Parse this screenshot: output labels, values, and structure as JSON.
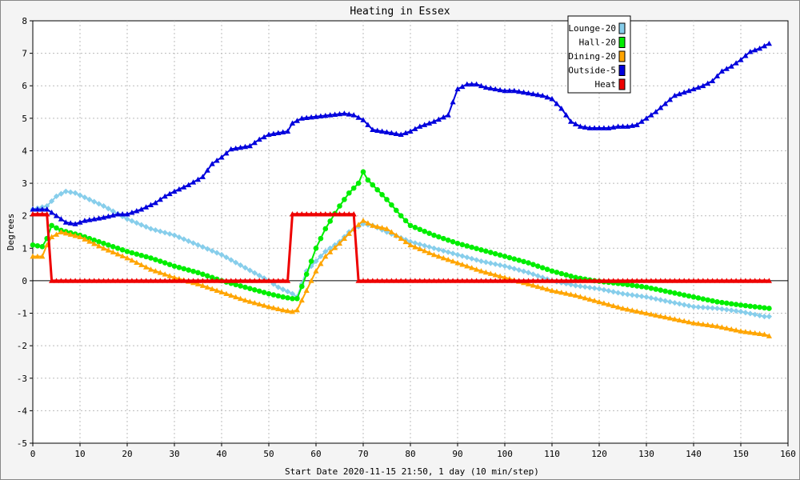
{
  "chart_data": {
    "type": "line",
    "title": "Heating in Essex",
    "xlabel": "Start Date 2020-11-15 21:50, 1 day (10 min/step)",
    "ylabel": "Degrees",
    "xlim": [
      0,
      160
    ],
    "ylim": [
      -5,
      8
    ],
    "xticks": [
      0,
      10,
      20,
      30,
      40,
      50,
      60,
      70,
      80,
      90,
      100,
      110,
      120,
      130,
      140,
      150,
      160
    ],
    "yticks": [
      -5,
      -4,
      -3,
      -2,
      -1,
      0,
      1,
      2,
      3,
      4,
      5,
      6,
      7,
      8
    ],
    "grid": true,
    "legend_position": "top-right",
    "series": [
      {
        "name": "Lounge-20",
        "color": "#87ceeb",
        "marker": "diamond",
        "points": [
          [
            0,
            2.2
          ],
          [
            3,
            2.3
          ],
          [
            5,
            2.6
          ],
          [
            7,
            2.75
          ],
          [
            9,
            2.7
          ],
          [
            12,
            2.5
          ],
          [
            15,
            2.3
          ],
          [
            20,
            1.9
          ],
          [
            25,
            1.6
          ],
          [
            30,
            1.4
          ],
          [
            35,
            1.1
          ],
          [
            40,
            0.8
          ],
          [
            45,
            0.4
          ],
          [
            50,
            0.0
          ],
          [
            52,
            -0.2
          ],
          [
            55,
            -0.4
          ],
          [
            56,
            -0.5
          ],
          [
            58,
            0.3
          ],
          [
            62,
            0.9
          ],
          [
            65,
            1.2
          ],
          [
            67,
            1.5
          ],
          [
            70,
            1.75
          ],
          [
            72,
            1.7
          ],
          [
            75,
            1.5
          ],
          [
            80,
            1.2
          ],
          [
            85,
            1.0
          ],
          [
            90,
            0.8
          ],
          [
            95,
            0.6
          ],
          [
            100,
            0.45
          ],
          [
            105,
            0.25
          ],
          [
            110,
            0.0
          ],
          [
            115,
            -0.15
          ],
          [
            120,
            -0.25
          ],
          [
            125,
            -0.4
          ],
          [
            130,
            -0.5
          ],
          [
            135,
            -0.65
          ],
          [
            140,
            -0.8
          ],
          [
            145,
            -0.85
          ],
          [
            150,
            -0.95
          ],
          [
            155,
            -1.1
          ],
          [
            156,
            -1.1
          ]
        ]
      },
      {
        "name": "Hall-20",
        "color": "#00ee00",
        "marker": "circle",
        "points": [
          [
            0,
            1.1
          ],
          [
            2,
            1.05
          ],
          [
            3,
            1.3
          ],
          [
            4,
            1.7
          ],
          [
            6,
            1.55
          ],
          [
            10,
            1.4
          ],
          [
            15,
            1.15
          ],
          [
            20,
            0.9
          ],
          [
            25,
            0.7
          ],
          [
            30,
            0.45
          ],
          [
            35,
            0.25
          ],
          [
            40,
            0.0
          ],
          [
            45,
            -0.2
          ],
          [
            50,
            -0.4
          ],
          [
            53,
            -0.5
          ],
          [
            55,
            -0.55
          ],
          [
            56,
            -0.55
          ],
          [
            58,
            0.2
          ],
          [
            60,
            1.0
          ],
          [
            62,
            1.6
          ],
          [
            65,
            2.3
          ],
          [
            67,
            2.7
          ],
          [
            69,
            3.0
          ],
          [
            70,
            3.35
          ],
          [
            71,
            3.1
          ],
          [
            73,
            2.8
          ],
          [
            75,
            2.5
          ],
          [
            78,
            2.0
          ],
          [
            80,
            1.7
          ],
          [
            85,
            1.4
          ],
          [
            90,
            1.15
          ],
          [
            95,
            0.95
          ],
          [
            100,
            0.75
          ],
          [
            105,
            0.55
          ],
          [
            110,
            0.3
          ],
          [
            115,
            0.1
          ],
          [
            119,
            0.0
          ],
          [
            125,
            -0.1
          ],
          [
            130,
            -0.2
          ],
          [
            135,
            -0.35
          ],
          [
            140,
            -0.5
          ],
          [
            145,
            -0.65
          ],
          [
            150,
            -0.75
          ],
          [
            156,
            -0.85
          ]
        ]
      },
      {
        "name": "Dining-20",
        "color": "#ffa500",
        "marker": "triangle",
        "points": [
          [
            0,
            0.75
          ],
          [
            2,
            0.75
          ],
          [
            3,
            1.1
          ],
          [
            4,
            1.35
          ],
          [
            6,
            1.5
          ],
          [
            10,
            1.35
          ],
          [
            15,
            1.0
          ],
          [
            20,
            0.7
          ],
          [
            25,
            0.35
          ],
          [
            30,
            0.1
          ],
          [
            35,
            -0.1
          ],
          [
            40,
            -0.35
          ],
          [
            45,
            -0.6
          ],
          [
            50,
            -0.8
          ],
          [
            53,
            -0.9
          ],
          [
            55,
            -0.95
          ],
          [
            56,
            -0.9
          ],
          [
            58,
            -0.3
          ],
          [
            60,
            0.3
          ],
          [
            62,
            0.75
          ],
          [
            65,
            1.15
          ],
          [
            68,
            1.6
          ],
          [
            70,
            1.85
          ],
          [
            72,
            1.7
          ],
          [
            75,
            1.6
          ],
          [
            78,
            1.3
          ],
          [
            80,
            1.1
          ],
          [
            85,
            0.8
          ],
          [
            90,
            0.55
          ],
          [
            95,
            0.3
          ],
          [
            100,
            0.1
          ],
          [
            105,
            -0.1
          ],
          [
            110,
            -0.3
          ],
          [
            115,
            -0.45
          ],
          [
            120,
            -0.65
          ],
          [
            125,
            -0.85
          ],
          [
            130,
            -1.0
          ],
          [
            135,
            -1.15
          ],
          [
            140,
            -1.3
          ],
          [
            145,
            -1.4
          ],
          [
            150,
            -1.55
          ],
          [
            155,
            -1.65
          ],
          [
            156,
            -1.7
          ]
        ]
      },
      {
        "name": "Outside-5",
        "color": "#0000dd",
        "marker": "triangle",
        "points": [
          [
            0,
            2.2
          ],
          [
            3,
            2.2
          ],
          [
            5,
            2.0
          ],
          [
            7,
            1.8
          ],
          [
            9,
            1.75
          ],
          [
            11,
            1.85
          ],
          [
            13,
            1.9
          ],
          [
            15,
            1.95
          ],
          [
            18,
            2.05
          ],
          [
            20,
            2.05
          ],
          [
            23,
            2.2
          ],
          [
            26,
            2.4
          ],
          [
            28,
            2.6
          ],
          [
            30,
            2.75
          ],
          [
            33,
            2.95
          ],
          [
            36,
            3.2
          ],
          [
            38,
            3.6
          ],
          [
            40,
            3.8
          ],
          [
            42,
            4.05
          ],
          [
            44,
            4.1
          ],
          [
            46,
            4.15
          ],
          [
            48,
            4.35
          ],
          [
            50,
            4.5
          ],
          [
            52,
            4.55
          ],
          [
            54,
            4.6
          ],
          [
            55,
            4.85
          ],
          [
            57,
            5.0
          ],
          [
            60,
            5.05
          ],
          [
            63,
            5.1
          ],
          [
            66,
            5.15
          ],
          [
            68,
            5.1
          ],
          [
            70,
            4.95
          ],
          [
            72,
            4.65
          ],
          [
            74,
            4.6
          ],
          [
            76,
            4.55
          ],
          [
            78,
            4.5
          ],
          [
            80,
            4.6
          ],
          [
            82,
            4.75
          ],
          [
            85,
            4.9
          ],
          [
            88,
            5.1
          ],
          [
            90,
            5.9
          ],
          [
            92,
            6.05
          ],
          [
            94,
            6.05
          ],
          [
            96,
            5.95
          ],
          [
            98,
            5.9
          ],
          [
            100,
            5.85
          ],
          [
            102,
            5.85
          ],
          [
            104,
            5.8
          ],
          [
            106,
            5.75
          ],
          [
            108,
            5.7
          ],
          [
            110,
            5.6
          ],
          [
            112,
            5.3
          ],
          [
            114,
            4.9
          ],
          [
            116,
            4.75
          ],
          [
            118,
            4.7
          ],
          [
            120,
            4.7
          ],
          [
            122,
            4.7
          ],
          [
            124,
            4.75
          ],
          [
            126,
            4.75
          ],
          [
            128,
            4.8
          ],
          [
            130,
            5.0
          ],
          [
            132,
            5.2
          ],
          [
            134,
            5.45
          ],
          [
            136,
            5.7
          ],
          [
            138,
            5.8
          ],
          [
            140,
            5.9
          ],
          [
            142,
            6.0
          ],
          [
            144,
            6.15
          ],
          [
            146,
            6.45
          ],
          [
            148,
            6.6
          ],
          [
            150,
            6.8
          ],
          [
            152,
            7.05
          ],
          [
            154,
            7.15
          ],
          [
            156,
            7.3
          ]
        ]
      },
      {
        "name": "Heat",
        "color": "#ee0000",
        "marker": "triangle",
        "points": [
          [
            0,
            2.05
          ],
          [
            3,
            2.05
          ],
          [
            4,
            0.0
          ],
          [
            54,
            0.0
          ],
          [
            55,
            2.05
          ],
          [
            68,
            2.05
          ],
          [
            69,
            0.0
          ],
          [
            156,
            0.0
          ]
        ]
      }
    ]
  }
}
